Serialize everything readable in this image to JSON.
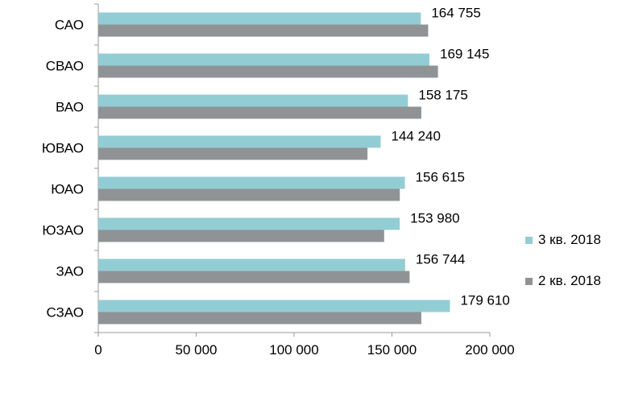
{
  "chart_data": {
    "type": "bar",
    "orientation": "horizontal",
    "categories": [
      "САО",
      "СВАО",
      "ВАО",
      "ЮВАО",
      "ЮАО",
      "ЮЗАО",
      "ЗАО",
      "СЗАО"
    ],
    "series": [
      {
        "name": "3 кв. 2018",
        "values": [
          164755,
          169145,
          158175,
          144240,
          156615,
          153980,
          156744,
          179610
        ],
        "data_labels": [
          "164 755",
          "169 145",
          "158 175",
          "144 240",
          "156 615",
          "153 980",
          "156 744",
          "179 610"
        ],
        "color": "#93cdd4"
      },
      {
        "name": "2 кв. 2018",
        "values": [
          168500,
          173500,
          165000,
          137500,
          154000,
          146000,
          159000,
          165000
        ],
        "color": "#8f9396"
      }
    ],
    "xlim": [
      0,
      200000
    ],
    "xticks": [
      0,
      50000,
      100000,
      150000,
      200000
    ],
    "xtick_labels": [
      "0",
      "50 000",
      "100 000",
      "150 000",
      "200 000"
    ],
    "grid": false,
    "legend_position": "right"
  }
}
